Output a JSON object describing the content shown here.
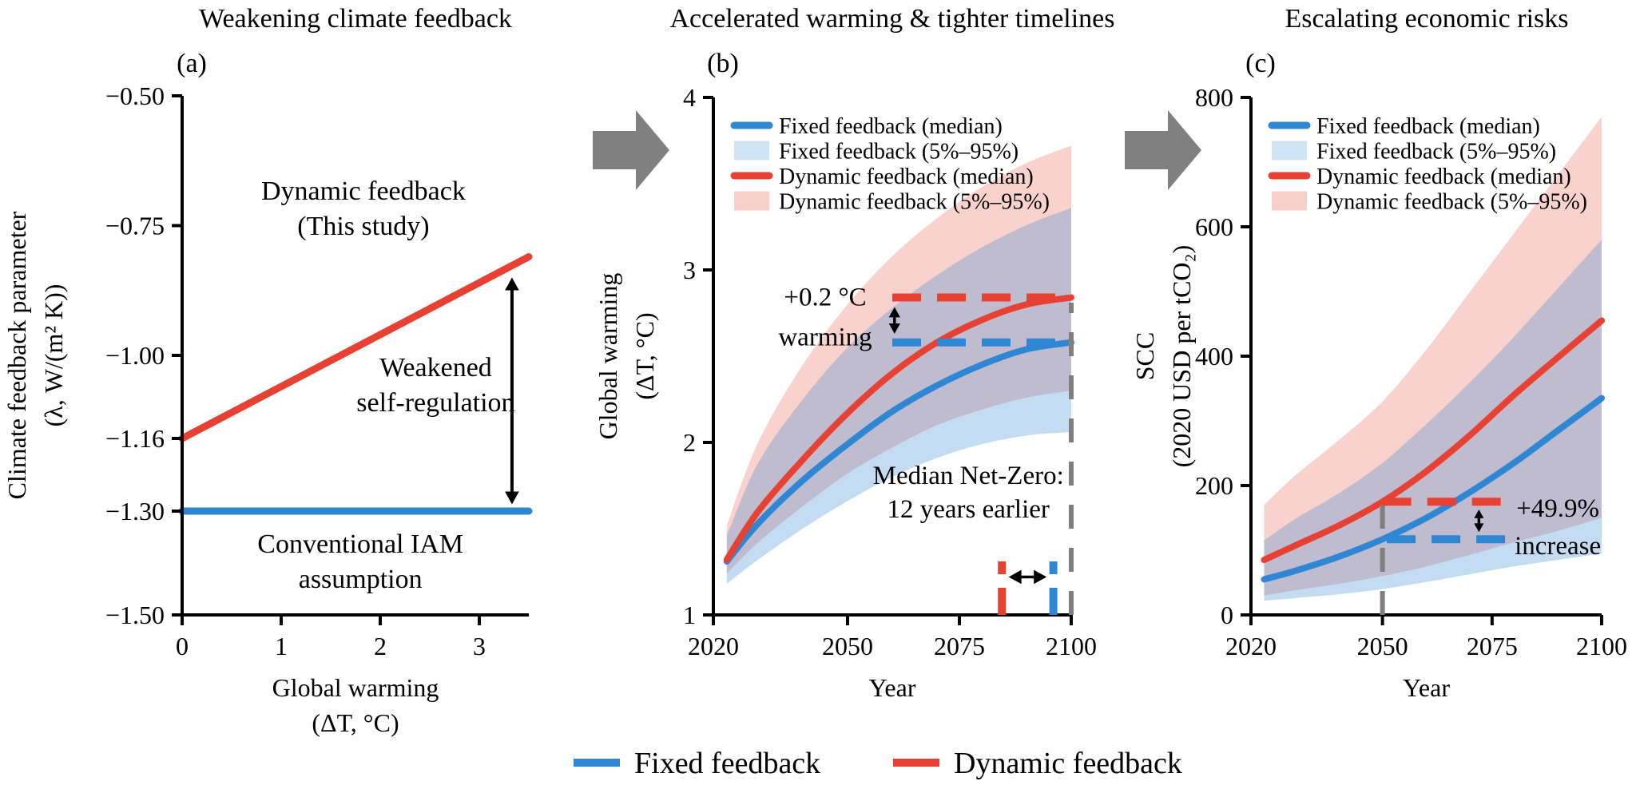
{
  "figure": {
    "background": "#ffffff",
    "flow_arrow_color": "#808080",
    "bottom_legend": [
      {
        "label": "Fixed feedback",
        "color": "#2f87d3"
      },
      {
        "label": "Dynamic feedback",
        "color": "#e74133"
      }
    ]
  },
  "colors": {
    "dynamic_line": "#e74133",
    "fixed_line": "#2f87d3",
    "dynamic_band_legend": "#f8d0cb",
    "fixed_band_legend": "#cfe4f5",
    "reference_gray": "#7f7f7f",
    "arrow_gray": "#808080"
  },
  "chart_data": [
    {
      "id": "panel-a",
      "type": "line",
      "letter": "(a)",
      "title": "Weakening climate feedback",
      "x_range": [
        0,
        3.5
      ],
      "y_range": [
        -1.5,
        -0.5
      ],
      "grid": false,
      "x_ticks": [
        {
          "v": 0,
          "label": "0"
        },
        {
          "v": 1,
          "label": "1"
        },
        {
          "v": 2,
          "label": "2"
        },
        {
          "v": 3,
          "label": "3"
        }
      ],
      "y_ticks": [
        {
          "v": -0.5,
          "label": "−0.50"
        },
        {
          "v": -0.75,
          "label": "−0.75"
        },
        {
          "v": -1.0,
          "label": "−1.00"
        },
        {
          "v": -1.16,
          "label": "−1.16"
        },
        {
          "v": -1.3,
          "label": "−1.30"
        },
        {
          "v": -1.5,
          "label": "−1.50"
        }
      ],
      "xlabel_lines": [
        "Global warming",
        "(ΔT, °C)"
      ],
      "ylabel_lines": [
        "Climate feedback parameter",
        "(λ, W/(m² K))"
      ],
      "series": [
        {
          "name": "dynamic-feedback-line",
          "label": "Dynamic feedback (This study)",
          "color": "#e74133",
          "width": 9,
          "x": [
            0,
            3.5
          ],
          "y": [
            -1.16,
            -0.81
          ]
        },
        {
          "name": "conventional-iam-line",
          "label": "Conventional IAM assumption",
          "color": "#2f87d3",
          "width": 9,
          "x": [
            0,
            3.5
          ],
          "y": [
            -1.3,
            -1.3
          ]
        }
      ],
      "annotations": [
        {
          "type": "text",
          "name": "dynamic-feedback-label",
          "x": 1.83,
          "y": -0.7,
          "lines": [
            "Dynamic feedback",
            "(This study)"
          ],
          "color": "#e74133",
          "size": 34,
          "lh": 44
        },
        {
          "type": "text",
          "name": "weakened-self-regulation-label",
          "x": 2.56,
          "y": -1.04,
          "lines": [
            "Weakened",
            "self-regulation"
          ],
          "color": "#000000",
          "size": 34,
          "lh": 44
        },
        {
          "type": "text",
          "name": "conventional-iam-label",
          "x": 1.8,
          "y": -1.38,
          "lines": [
            "Conventional IAM",
            "assumption"
          ],
          "color": "#2f87d3",
          "size": 34,
          "lh": 44
        },
        {
          "type": "varrow",
          "name": "weakened-gap-arrow",
          "x": 3.33,
          "y1": -0.85,
          "y2": -1.287,
          "color": "#000000",
          "width": 4
        }
      ]
    },
    {
      "id": "panel-b",
      "type": "line",
      "letter": "(b)",
      "title": "Accelerated warming & tighter timelines",
      "x_range": [
        2020,
        2100
      ],
      "y_range": [
        1,
        4
      ],
      "grid": false,
      "x_ticks": [
        {
          "v": 2020,
          "label": "2020"
        },
        {
          "v": 2050,
          "label": "2050"
        },
        {
          "v": 2075,
          "label": "2075"
        },
        {
          "v": 2100,
          "label": "2100"
        }
      ],
      "y_ticks": [
        {
          "v": 1,
          "label": "1"
        },
        {
          "v": 2,
          "label": "2"
        },
        {
          "v": 3,
          "label": "3"
        },
        {
          "v": 4,
          "label": "4"
        }
      ],
      "xlabel_lines": [
        "Year"
      ],
      "ylabel_lines": [
        "Global warming",
        "(ΔT, °C)"
      ],
      "bands": [
        {
          "name": "dynamic-band",
          "label": "Dynamic feedback (5%–95%)",
          "fill": "rgba(235,95,80,0.28)",
          "x": [
            2023,
            2030,
            2040,
            2050,
            2060,
            2070,
            2080,
            2090,
            2100
          ],
          "lower": [
            1.24,
            1.42,
            1.63,
            1.82,
            1.97,
            2.1,
            2.19,
            2.26,
            2.3
          ],
          "upper": [
            1.52,
            2.0,
            2.45,
            2.8,
            3.08,
            3.3,
            3.48,
            3.62,
            3.72
          ]
        },
        {
          "name": "fixed-band",
          "label": "Fixed feedback (5%–95%)",
          "fill": "rgba(58,140,210,0.30)",
          "x": [
            2023,
            2030,
            2040,
            2050,
            2060,
            2070,
            2080,
            2090,
            2100
          ],
          "lower": [
            1.18,
            1.32,
            1.5,
            1.66,
            1.8,
            1.91,
            1.99,
            2.04,
            2.06
          ],
          "upper": [
            1.46,
            1.88,
            2.25,
            2.55,
            2.78,
            2.97,
            3.13,
            3.26,
            3.36
          ]
        }
      ],
      "series": [
        {
          "name": "fixed-median",
          "label": "Fixed feedback (median)",
          "color": "#2f87d3",
          "width": 8,
          "x": [
            2023,
            2030,
            2040,
            2050,
            2060,
            2070,
            2080,
            2090,
            2100
          ],
          "y": [
            1.31,
            1.53,
            1.78,
            1.99,
            2.18,
            2.33,
            2.45,
            2.54,
            2.58
          ]
        },
        {
          "name": "dynamic-median",
          "label": "Dynamic feedback (median)",
          "color": "#e74133",
          "width": 8,
          "x": [
            2023,
            2030,
            2040,
            2050,
            2060,
            2070,
            2080,
            2090,
            2100
          ],
          "y": [
            1.32,
            1.6,
            1.9,
            2.17,
            2.4,
            2.58,
            2.71,
            2.8,
            2.84
          ]
        }
      ],
      "legend": [
        {
          "swatch": "line",
          "color": "#2f87d3",
          "label": "Fixed feedback (median)"
        },
        {
          "swatch": "patch",
          "color": "#cfe4f5",
          "label": "Fixed feedback (5%–95%)"
        },
        {
          "swatch": "line",
          "color": "#e74133",
          "label": "Dynamic feedback (median)"
        },
        {
          "swatch": "patch",
          "color": "#f8d0cb",
          "label": "Dynamic feedback (5%–95%)"
        }
      ],
      "annotations": [
        {
          "type": "vdash",
          "name": "year-2100-marker",
          "x": 2100,
          "y1": 1.0,
          "y2": 2.81,
          "color": "#7f7f7f",
          "width": 6,
          "dash": "30 24"
        },
        {
          "type": "hdash",
          "name": "dynamic-2100-level",
          "y": 2.84,
          "x1": 2060,
          "x2": 2100,
          "color": "#e74133",
          "width": 10,
          "dash": "36 20"
        },
        {
          "type": "hdash",
          "name": "fixed-2100-level",
          "y": 2.58,
          "x1": 2060,
          "x2": 2100,
          "color": "#2f87d3",
          "width": 10,
          "dash": "36 20"
        },
        {
          "type": "varrow",
          "name": "warming-gap-arrow",
          "x": 2060.5,
          "y1": 2.785,
          "y2": 2.63,
          "color": "#000000",
          "width": 3.5
        },
        {
          "type": "text",
          "name": "warming-gap-label",
          "x": 2045,
          "y": 2.795,
          "lines": [
            "+0.2 °C",
            "warming"
          ],
          "color": "#000000",
          "size": 33,
          "lh": 50
        },
        {
          "type": "vdash",
          "name": "dynamic-netzero-year",
          "x": 2084.5,
          "y1": 1.0,
          "y2": 1.31,
          "color": "#e74133",
          "width": 10,
          "dash": "34 17"
        },
        {
          "type": "vdash",
          "name": "fixed-netzero-year",
          "x": 2096,
          "y1": 1.0,
          "y2": 1.31,
          "color": "#2f87d3",
          "width": 10,
          "dash": "34 17"
        },
        {
          "type": "harrow",
          "name": "netzero-gap-arrow",
          "y": 1.22,
          "x1": 2086,
          "x2": 2094.5,
          "color": "#000000",
          "width": 3.5
        },
        {
          "type": "text",
          "name": "netzero-label",
          "x": 2077,
          "y": 1.76,
          "lines": [
            "Median Net-Zero:",
            "12 years earlier"
          ],
          "color": "#000000",
          "size": 33,
          "lh": 42
        }
      ]
    },
    {
      "id": "panel-c",
      "type": "line",
      "letter": "(c)",
      "title": "Escalating economic risks",
      "x_range": [
        2020,
        2100
      ],
      "y_range": [
        0,
        800
      ],
      "grid": false,
      "x_ticks": [
        {
          "v": 2020,
          "label": "2020"
        },
        {
          "v": 2050,
          "label": "2050"
        },
        {
          "v": 2075,
          "label": "2075"
        },
        {
          "v": 2100,
          "label": "2100"
        }
      ],
      "y_ticks": [
        {
          "v": 0,
          "label": "0"
        },
        {
          "v": 200,
          "label": "200"
        },
        {
          "v": 400,
          "label": "400"
        },
        {
          "v": 600,
          "label": "600"
        },
        {
          "v": 800,
          "label": "800"
        }
      ],
      "xlabel_lines": [
        "Year"
      ],
      "ylabel_lines": [
        "SCC",
        "(2020 USD per tCO₂)"
      ],
      "bands": [
        {
          "name": "dynamic-band",
          "label": "Dynamic feedback (5%–95%)",
          "fill": "rgba(235,95,80,0.28)",
          "x": [
            2023,
            2030,
            2040,
            2050,
            2060,
            2070,
            2080,
            2090,
            2100
          ],
          "lower": [
            30,
            38,
            48,
            60,
            75,
            93,
            112,
            130,
            150
          ],
          "upper": [
            170,
            215,
            270,
            330,
            410,
            500,
            590,
            680,
            770
          ]
        },
        {
          "name": "fixed-band",
          "label": "Fixed feedback (5%–95%)",
          "fill": "rgba(58,140,210,0.30)",
          "x": [
            2023,
            2030,
            2040,
            2050,
            2060,
            2070,
            2080,
            2090,
            2100
          ],
          "lower": [
            22,
            26,
            32,
            40,
            51,
            63,
            75,
            85,
            95
          ],
          "upper": [
            115,
            148,
            188,
            235,
            295,
            360,
            430,
            505,
            580
          ]
        }
      ],
      "series": [
        {
          "name": "fixed-median",
          "label": "Fixed feedback (median)",
          "color": "#2f87d3",
          "width": 8,
          "x": [
            2023,
            2030,
            2040,
            2050,
            2060,
            2070,
            2080,
            2090,
            2100
          ],
          "y": [
            55,
            68,
            90,
            117,
            150,
            190,
            235,
            285,
            335
          ]
        },
        {
          "name": "dynamic-median",
          "label": "Dynamic feedback (median)",
          "color": "#e74133",
          "width": 8,
          "x": [
            2023,
            2030,
            2040,
            2050,
            2060,
            2070,
            2080,
            2090,
            2100
          ],
          "y": [
            85,
            107,
            138,
            175,
            222,
            278,
            340,
            398,
            455
          ]
        }
      ],
      "legend": [
        {
          "swatch": "line",
          "color": "#2f87d3",
          "label": "Fixed feedback (median)"
        },
        {
          "swatch": "patch",
          "color": "#cfe4f5",
          "label": "Fixed feedback (5%–95%)"
        },
        {
          "swatch": "line",
          "color": "#e74133",
          "label": "Dynamic feedback (median)"
        },
        {
          "swatch": "patch",
          "color": "#f8d0cb",
          "label": "Dynamic feedback (5%–95%)"
        }
      ],
      "annotations": [
        {
          "type": "vdash",
          "name": "year-2050-marker",
          "x": 2050,
          "y1": 0,
          "y2": 172,
          "color": "#7f7f7f",
          "width": 6,
          "dash": "30 24"
        },
        {
          "type": "hdash",
          "name": "dynamic-2050-level",
          "y": 175,
          "x1": 2050,
          "x2": 2078,
          "color": "#e74133",
          "width": 10,
          "dash": "36 20"
        },
        {
          "type": "hdash",
          "name": "fixed-2050-level",
          "y": 117,
          "x1": 2051,
          "x2": 2078,
          "color": "#2f87d3",
          "width": 10,
          "dash": "36 20"
        },
        {
          "type": "varrow",
          "name": "scc-gap-arrow",
          "x": 2072,
          "y1": 163,
          "y2": 128,
          "color": "#000000",
          "width": 3.5
        },
        {
          "type": "text",
          "name": "scc-gap-label",
          "x": 2090,
          "y": 152,
          "lines": [
            "+49.9%",
            "increase"
          ],
          "color": "#000000",
          "size": 33,
          "lh": 47
        }
      ]
    }
  ]
}
